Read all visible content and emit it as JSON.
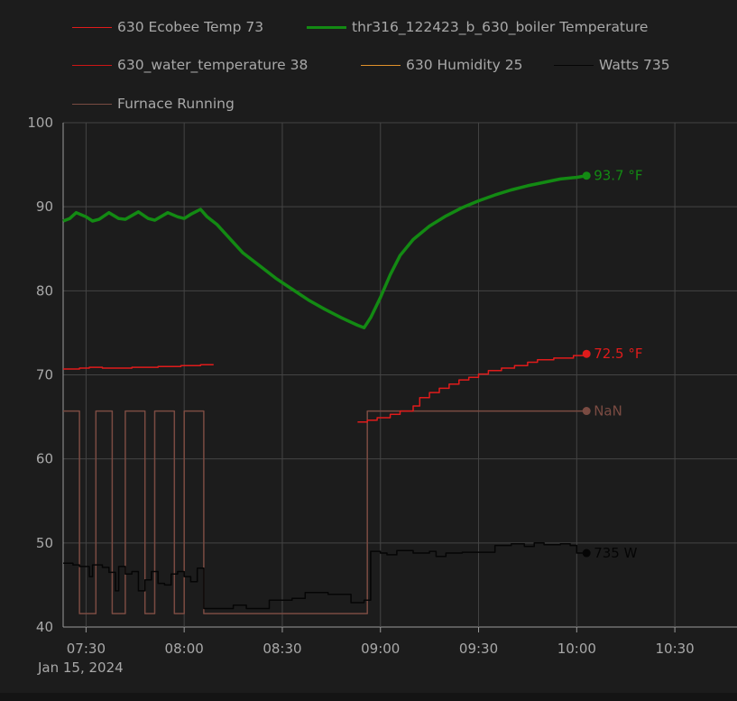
{
  "chart_data": {
    "type": "line",
    "date_label": "Jan 15, 2024",
    "x_ticks": [
      "07:30",
      "08:00",
      "08:30",
      "09:00",
      "09:30",
      "10:00",
      "10:30"
    ],
    "xlim": [
      "07:23",
      "10:49"
    ],
    "ylim": [
      40,
      100
    ],
    "y_ticks": [
      40,
      50,
      60,
      70,
      80,
      90,
      100
    ],
    "grid": true,
    "legend_position": "top",
    "series": [
      {
        "name": "630 Ecobee Temp 73",
        "color": "#e01b1b",
        "stroke_width": 1.5,
        "step": true,
        "end_label": "72.5 °F",
        "points": [
          [
            "07:23",
            70.7
          ],
          [
            "07:28",
            70.8
          ],
          [
            "07:31",
            70.9
          ],
          [
            "07:35",
            70.8
          ],
          [
            "07:44",
            70.9
          ],
          [
            "07:52",
            71.0
          ],
          [
            "07:59",
            71.1
          ],
          [
            "08:05",
            71.2
          ],
          [
            "08:09",
            71.2
          ],
          null,
          [
            "08:53",
            64.4
          ],
          [
            "08:56",
            64.6
          ],
          [
            "08:59",
            64.9
          ],
          [
            "09:03",
            65.3
          ],
          [
            "09:06",
            65.7
          ],
          [
            "09:10",
            66.3
          ],
          [
            "09:12",
            67.3
          ],
          [
            "09:15",
            67.9
          ],
          [
            "09:18",
            68.4
          ],
          [
            "09:21",
            68.9
          ],
          [
            "09:24",
            69.4
          ],
          [
            "09:27",
            69.7
          ],
          [
            "09:30",
            70.1
          ],
          [
            "09:33",
            70.5
          ],
          [
            "09:37",
            70.8
          ],
          [
            "09:41",
            71.1
          ],
          [
            "09:45",
            71.5
          ],
          [
            "09:48",
            71.8
          ],
          [
            "09:53",
            72.0
          ],
          [
            "09:59",
            72.3
          ],
          [
            "10:03",
            72.5
          ]
        ]
      },
      {
        "name": "thr316_122423_b_630_boiler Temperature",
        "color": "#138a13",
        "stroke_width": 3.5,
        "step": false,
        "end_label": "93.7 °F",
        "points": [
          [
            "07:23",
            88.3
          ],
          [
            "07:25",
            88.6
          ],
          [
            "07:27",
            89.3
          ],
          [
            "07:30",
            88.8
          ],
          [
            "07:32",
            88.3
          ],
          [
            "07:34",
            88.5
          ],
          [
            "07:37",
            89.3
          ],
          [
            "07:40",
            88.6
          ],
          [
            "07:42",
            88.5
          ],
          [
            "07:46",
            89.4
          ],
          [
            "07:49",
            88.6
          ],
          [
            "07:51",
            88.4
          ],
          [
            "07:55",
            89.3
          ],
          [
            "07:58",
            88.8
          ],
          [
            "08:00",
            88.6
          ],
          [
            "08:02",
            89.1
          ],
          [
            "08:05",
            89.7
          ],
          [
            "08:07",
            88.8
          ],
          [
            "08:10",
            87.9
          ],
          [
            "08:14",
            86.2
          ],
          [
            "08:18",
            84.5
          ],
          [
            "08:23",
            83.0
          ],
          [
            "08:28",
            81.5
          ],
          [
            "08:33",
            80.2
          ],
          [
            "08:38",
            78.9
          ],
          [
            "08:43",
            77.8
          ],
          [
            "08:48",
            76.8
          ],
          [
            "08:53",
            75.9
          ],
          [
            "08:55",
            75.6
          ],
          [
            "08:57",
            76.8
          ],
          [
            "09:00",
            79.2
          ],
          [
            "09:03",
            81.9
          ],
          [
            "09:06",
            84.2
          ],
          [
            "09:10",
            86.1
          ],
          [
            "09:15",
            87.7
          ],
          [
            "09:20",
            88.9
          ],
          [
            "09:25",
            89.9
          ],
          [
            "09:30",
            90.7
          ],
          [
            "09:35",
            91.4
          ],
          [
            "09:40",
            92.0
          ],
          [
            "09:45",
            92.5
          ],
          [
            "09:50",
            92.9
          ],
          [
            "09:55",
            93.3
          ],
          [
            "10:00",
            93.5
          ],
          [
            "10:03",
            93.7
          ]
        ]
      },
      {
        "name": "630_water_temperature 38",
        "color": "#cc1515",
        "stroke_width": 1.5,
        "step": true,
        "points": []
      },
      {
        "name": "630 Humidity 25",
        "color": "#e0912b",
        "stroke_width": 1.5,
        "step": true,
        "points": []
      },
      {
        "name": "Watts 735",
        "color": "#050505",
        "stroke_width": 1.5,
        "step": true,
        "end_label": "735 W",
        "points": [
          [
            "07:23",
            47.6
          ],
          [
            "07:26",
            47.4
          ],
          [
            "07:28",
            47.2
          ],
          [
            "07:31",
            46.0
          ],
          [
            "07:32",
            47.4
          ],
          [
            "07:35",
            47.1
          ],
          [
            "07:37",
            46.5
          ],
          [
            "07:39",
            44.3
          ],
          [
            "07:40",
            47.2
          ],
          [
            "07:42",
            46.3
          ],
          [
            "07:44",
            46.6
          ],
          [
            "07:46",
            44.3
          ],
          [
            "07:48",
            45.6
          ],
          [
            "07:50",
            46.6
          ],
          [
            "07:52",
            45.2
          ],
          [
            "07:54",
            45.0
          ],
          [
            "07:56",
            46.3
          ],
          [
            "07:58",
            46.6
          ],
          [
            "08:00",
            46.0
          ],
          [
            "08:02",
            45.4
          ],
          [
            "08:04",
            47.0
          ],
          [
            "08:06",
            42.2
          ],
          [
            "08:15",
            42.6
          ],
          [
            "08:19",
            42.2
          ],
          [
            "08:26",
            43.2
          ],
          [
            "08:33",
            43.4
          ],
          [
            "08:37",
            44.1
          ],
          [
            "08:44",
            43.9
          ],
          [
            "08:51",
            42.9
          ],
          [
            "08:55",
            43.2
          ],
          [
            "08:57",
            49.0
          ],
          [
            "09:00",
            48.8
          ],
          [
            "09:02",
            48.6
          ],
          [
            "09:05",
            49.1
          ],
          [
            "09:10",
            48.8
          ],
          [
            "09:15",
            49.0
          ],
          [
            "09:17",
            48.4
          ],
          [
            "09:20",
            48.8
          ],
          [
            "09:25",
            48.9
          ],
          [
            "09:32",
            48.9
          ],
          [
            "09:35",
            49.7
          ],
          [
            "09:40",
            49.9
          ],
          [
            "09:44",
            49.6
          ],
          [
            "09:47",
            50.0
          ],
          [
            "09:50",
            49.8
          ],
          [
            "09:55",
            49.9
          ],
          [
            "09:58",
            49.7
          ],
          [
            "10:00",
            48.8
          ],
          [
            "10:03",
            48.8
          ]
        ]
      },
      {
        "name": "Furnace Running",
        "color": "#7a4b42",
        "stroke_width": 1.5,
        "step": true,
        "end_label": "NaN",
        "points": [
          [
            "07:23",
            65.7
          ],
          [
            "07:28",
            41.6
          ],
          [
            "07:33",
            65.7
          ],
          [
            "07:38",
            41.6
          ],
          [
            "07:42",
            65.7
          ],
          [
            "07:48",
            41.6
          ],
          [
            "07:51",
            65.7
          ],
          [
            "07:57",
            41.6
          ],
          [
            "08:00",
            65.7
          ],
          [
            "08:06",
            41.6
          ],
          [
            "08:56",
            65.7
          ],
          [
            "10:03",
            65.7
          ]
        ]
      }
    ]
  }
}
